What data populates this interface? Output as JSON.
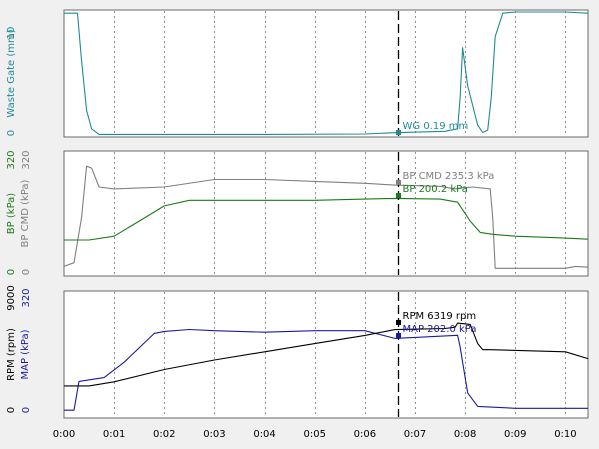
{
  "time_axis": {
    "ticks": [
      "0:00",
      "0:01",
      "0:02",
      "0:03",
      "0:04",
      "0:05",
      "0:06",
      "0:07",
      "0:08",
      "0:09",
      "0:10"
    ],
    "range": [
      0,
      0.1045
    ]
  },
  "cursor": {
    "time": 0.0667
  },
  "colors": {
    "wastegate": "#1e8a94",
    "bp": "#1a7a1a",
    "bp_cmd": "#7f7f7f",
    "rpm": "#000000",
    "map": "#1a1aa0",
    "grid": "#909090",
    "cursor": "#000000"
  },
  "panels": [
    {
      "id": "wastegate",
      "axes": [
        {
          "side": "outer",
          "label": "Waste Gate (mm)",
          "top_tick": "10",
          "bottom_tick": "0",
          "color": "#1e8a94"
        }
      ],
      "readouts": [
        {
          "text": "WG 0.19 mm",
          "color": "#1e8a94"
        }
      ]
    },
    {
      "id": "boost",
      "axes": [
        {
          "side": "outer",
          "label": "BP (kPa)",
          "top_tick": "320",
          "bottom_tick": "0",
          "color": "#1a7a1a"
        },
        {
          "side": "inner",
          "label": "BP CMD (kPa)",
          "top_tick": "320",
          "bottom_tick": "0",
          "color": "#7f7f7f"
        }
      ],
      "readouts": [
        {
          "text": "BP CMD 235.3 kPa",
          "color": "#7f7f7f"
        },
        {
          "text": "BP 200.2 kPa",
          "color": "#1a7a1a"
        }
      ]
    },
    {
      "id": "rpm-map",
      "axes": [
        {
          "side": "outer",
          "label": "RPM (rpm)",
          "top_tick": "9000",
          "bottom_tick": "0",
          "color": "#000000"
        },
        {
          "side": "inner",
          "label": "MAP (kPa)",
          "top_tick": "320",
          "bottom_tick": "0",
          "color": "#1a1aa0"
        }
      ],
      "readouts": [
        {
          "text": "RPM 6319 rpm",
          "color": "#000000"
        },
        {
          "text": "MAP 202.0 kPa",
          "color": "#1a1aa0"
        }
      ]
    }
  ],
  "chart_data": {
    "type": "line",
    "xlabel": "",
    "xlim": [
      0,
      0.1045
    ],
    "panels": [
      {
        "ylim": [
          0,
          10
        ],
        "series": [
          {
            "name": "Waste Gate (mm)",
            "color": "#1e8a94",
            "x": [
              0,
              0.0027,
              0.0035,
              0.0045,
              0.0055,
              0.007,
              0.02,
              0.04,
              0.06,
              0.066,
              0.076,
              0.0785,
              0.079,
              0.0795,
              0.0805,
              0.0825,
              0.0835,
              0.0845,
              0.0852,
              0.086,
              0.0875,
              0.09,
              0.1,
              0.1045
            ],
            "y": [
              9.9,
              9.9,
              6.0,
              2.0,
              0.5,
              0.05,
              0.05,
              0.05,
              0.08,
              0.19,
              0.3,
              0.5,
              3.0,
              7.1,
              4.0,
              0.8,
              0.2,
              0.4,
              3.0,
              8.0,
              9.9,
              10.0,
              10.0,
              9.9
            ]
          }
        ]
      },
      {
        "ylim": [
          0,
          320
        ],
        "series": [
          {
            "name": "BP CMD (kPa)",
            "color": "#7f7f7f",
            "x": [
              0,
              0.002,
              0.0035,
              0.0045,
              0.0055,
              0.007,
              0.01,
              0.02,
              0.03,
              0.04,
              0.05,
              0.06,
              0.066,
              0.075,
              0.078,
              0.0795,
              0.0815,
              0.085,
              0.0855,
              0.086,
              0.09,
              0.1,
              0.102,
              0.1045
            ],
            "y": [
              20,
              30,
              150,
              285,
              280,
              230,
              225,
              230,
              250,
              250,
              245,
              240,
              235,
              232,
              225,
              228,
              230,
              225,
              150,
              15,
              15,
              15,
              20,
              18
            ]
          },
          {
            "name": "BP (kPa)",
            "color": "#1a7a1a",
            "x": [
              0,
              0.005,
              0.01,
              0.015,
              0.02,
              0.025,
              0.03,
              0.04,
              0.05,
              0.06,
              0.066,
              0.075,
              0.0785,
              0.0795,
              0.081,
              0.083,
              0.0855,
              0.09,
              0.1,
              0.1045
            ],
            "y": [
              90,
              90,
              100,
              140,
              180,
              195,
              195,
              195,
              195,
              198,
              200,
              198,
              190,
              170,
              140,
              110,
              105,
              100,
              95,
              92
            ]
          }
        ]
      },
      {
        "ylim": [
          0,
          320
        ],
        "y2lim": [
          0,
          9000
        ],
        "series": [
          {
            "name": "MAP (kPa)",
            "color": "#1a1aa0",
            "axis": "right",
            "x": [
              0,
              0.002,
              0.003,
              0.008,
              0.012,
              0.016,
              0.018,
              0.02,
              0.025,
              0.03,
              0.04,
              0.05,
              0.06,
              0.066,
              0.0785,
              0.079,
              0.0795,
              0.0805,
              0.0825,
              0.09,
              0.1,
              0.1045
            ],
            "y": [
              15,
              15,
              90,
              100,
              140,
              190,
              215,
              220,
              225,
              222,
              218,
              222,
              222,
              202,
              210,
              180,
              140,
              60,
              25,
              20,
              20,
              20
            ]
          },
          {
            "name": "RPM (rpm)",
            "color": "#000000",
            "axis": "left",
            "x": [
              0,
              0.005,
              0.01,
              0.02,
              0.03,
              0.04,
              0.05,
              0.06,
              0.066,
              0.07,
              0.076,
              0.078,
              0.0785,
              0.081,
              0.0825,
              0.0835,
              0.085,
              0.1,
              0.1045
            ],
            "y": [
              2200,
              2200,
              2500,
              3400,
              4100,
              4700,
              5300,
              5900,
              6319,
              6350,
              6400,
              6500,
              6800,
              6700,
              5300,
              4850,
              4850,
              4700,
              4200
            ]
          }
        ]
      }
    ]
  }
}
